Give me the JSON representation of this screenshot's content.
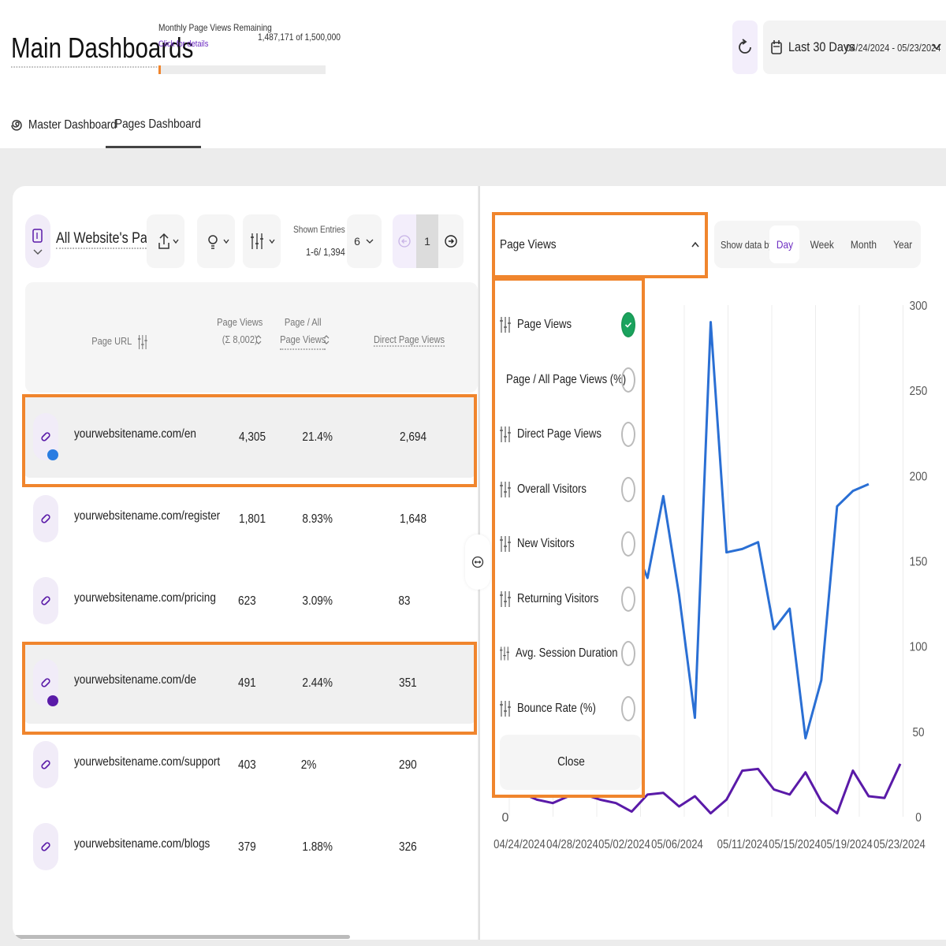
{
  "header": {
    "title": "Main Dashboards",
    "quota_label": "Monthly Page Views Remaining",
    "quota_link": "Click for details",
    "quota_count": "1,487,171 of 1,500,000",
    "quota_used_fraction": 0.0086,
    "date_label": "Last 30 Days",
    "date_range": "04/24/2024 - 05/23/2024"
  },
  "tabs": [
    {
      "label": "Master Dashboard",
      "active": false
    },
    {
      "label": "Pages Dashboard",
      "active": true
    }
  ],
  "left": {
    "selector_title": "All Website's Pages",
    "shown_entries_label": "Shown Entries",
    "shown_entries_value": "1-6/ 1,394",
    "per_page": "6",
    "page": "1",
    "columns": {
      "url": "Page URL",
      "page_views_1": "Page Views",
      "page_views_2": "(Σ 8,002)",
      "page_all_1": "Page / All",
      "page_all_2": "Page Views",
      "direct": "Direct Page Views"
    },
    "rows": [
      {
        "url": "yourwebsitename.com/en",
        "views": "4,305",
        "pct": "21.4%",
        "direct": "2,694",
        "highlight": true,
        "dot": "#2a7de1"
      },
      {
        "url": "yourwebsitename.com/register",
        "views": "1,801",
        "pct": "8.93%",
        "direct": "1,648",
        "highlight": false
      },
      {
        "url": "yourwebsitename.com/pricing",
        "views": "623",
        "pct": "3.09%",
        "direct": "83",
        "highlight": false
      },
      {
        "url": "yourwebsitename.com/de",
        "views": "491",
        "pct": "2.44%",
        "direct": "351",
        "highlight": true,
        "dot": "#5a1aa8"
      },
      {
        "url": "yourwebsitename.com/support",
        "views": "403",
        "pct": "2%",
        "direct": "290",
        "highlight": false
      },
      {
        "url": "yourwebsitename.com/blogs",
        "views": "379",
        "pct": "1.88%",
        "direct": "326",
        "highlight": false
      }
    ]
  },
  "right": {
    "metric_selected": "Page Views",
    "show_by_label": "Show data by:",
    "periods": [
      "Day",
      "Week",
      "Month",
      "Year"
    ],
    "active_period": "Day",
    "menu_items": [
      {
        "label": "Page Views",
        "checked": true
      },
      {
        "label": "Page / All Page Views (%)",
        "checked": false
      },
      {
        "label": "Direct Page Views",
        "checked": false
      },
      {
        "label": "Overall Visitors",
        "checked": false
      },
      {
        "label": "New Visitors",
        "checked": false
      },
      {
        "label": "Returning Visitors",
        "checked": false
      },
      {
        "label": "Avg. Session Duration",
        "checked": false
      },
      {
        "label": "Bounce Rate (%)",
        "checked": false
      }
    ],
    "close_label": "Close"
  },
  "chart_data": {
    "type": "line",
    "x_tick_labels": [
      "04/24/2024",
      "04/28/2024",
      "05/02/2024",
      "05/06/2024",
      "05/11/2024",
      "05/15/2024",
      "05/19/2024",
      "05/23/2024"
    ],
    "y_ticks": [
      0,
      50,
      100,
      150,
      200,
      250,
      300
    ],
    "ylim": [
      0,
      300
    ],
    "grid": true,
    "series": [
      {
        "name": "yourwebsitename.com/en",
        "color": "#2a6fd4",
        "points": [
          [
            0,
            130
          ],
          [
            1,
            110
          ],
          [
            2,
            100
          ],
          [
            3,
            95
          ],
          [
            4,
            110
          ],
          [
            5,
            120
          ],
          [
            6,
            70
          ],
          [
            7,
            70
          ],
          [
            8,
            162
          ],
          [
            9,
            140
          ],
          [
            10,
            188
          ],
          [
            11,
            130
          ],
          [
            12,
            58
          ],
          [
            13,
            290
          ],
          [
            14,
            155
          ],
          [
            15,
            157
          ],
          [
            16,
            161
          ],
          [
            17,
            110
          ],
          [
            18,
            122
          ],
          [
            19,
            46
          ],
          [
            20,
            80
          ],
          [
            21,
            182
          ],
          [
            22,
            191
          ],
          [
            23,
            195
          ]
        ]
      },
      {
        "name": "yourwebsitename.com/de",
        "color": "#5a1aa8",
        "points": [
          [
            0,
            18
          ],
          [
            1,
            14
          ],
          [
            2,
            10
          ],
          [
            3,
            8
          ],
          [
            4,
            12
          ],
          [
            5,
            13
          ],
          [
            6,
            10
          ],
          [
            7,
            8
          ],
          [
            8,
            3
          ],
          [
            9,
            13
          ],
          [
            10,
            14
          ],
          [
            11,
            6
          ],
          [
            12,
            12
          ],
          [
            13,
            2
          ],
          [
            14,
            10
          ],
          [
            15,
            27
          ],
          [
            16,
            28
          ],
          [
            17,
            16
          ],
          [
            18,
            13
          ],
          [
            19,
            26
          ],
          [
            20,
            9
          ],
          [
            21,
            2
          ],
          [
            22,
            27
          ],
          [
            23,
            12
          ],
          [
            24,
            11
          ],
          [
            25,
            31
          ]
        ]
      }
    ]
  }
}
